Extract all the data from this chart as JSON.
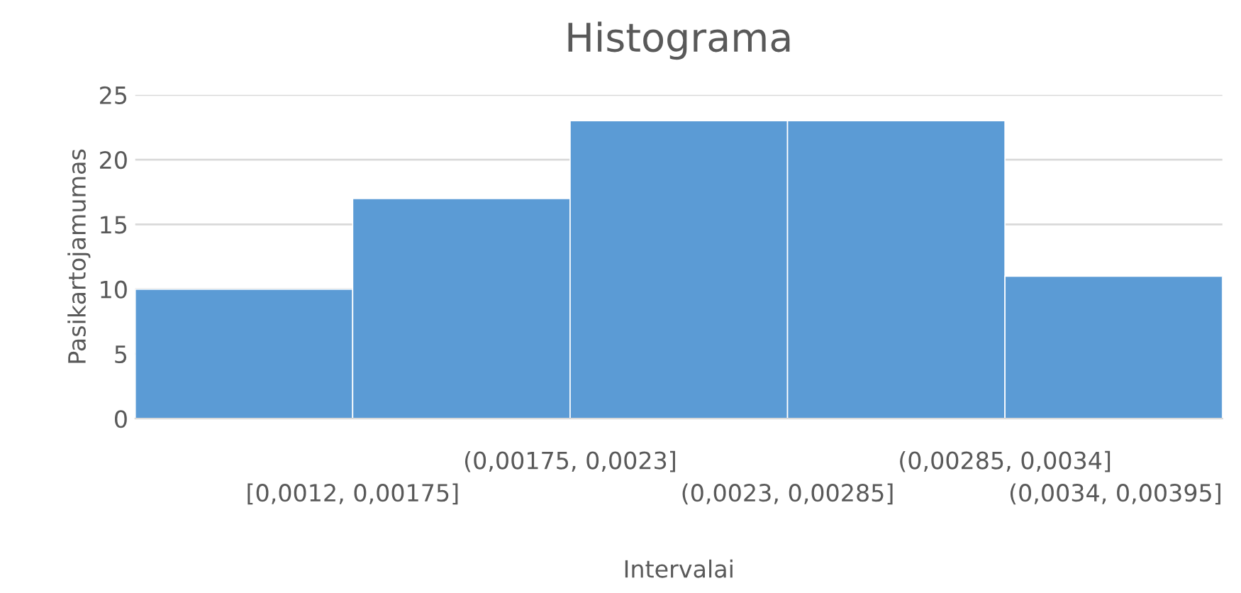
{
  "chart_data": {
    "type": "bar",
    "title": "Histograma",
    "xlabel": "Intervalai",
    "ylabel": "Pasikartojamumas",
    "categories": [
      "[0,0012, 0,00175]",
      "(0,00175, 0,0023]",
      "(0,0023, 0,00285]",
      "(0,00285, 0,0034]",
      "(0,0034, 0,00395]"
    ],
    "values": [
      10,
      17,
      23,
      23,
      11
    ],
    "color": "#5b9bd5",
    "ylim": [
      0,
      25
    ],
    "yticks": [
      0,
      5,
      10,
      15,
      20,
      25
    ],
    "grid": "y",
    "legend": false
  }
}
